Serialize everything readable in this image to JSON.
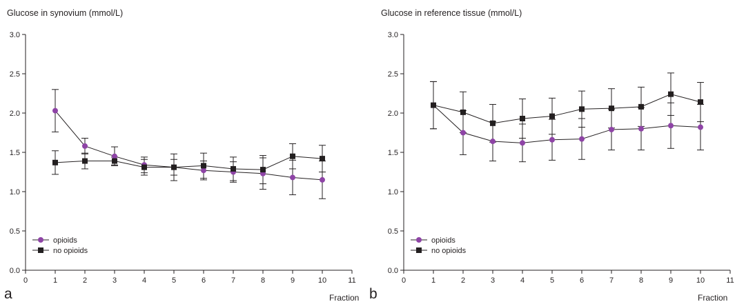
{
  "chart_data": [
    {
      "type": "line",
      "panel_label": "a",
      "title": "Glucose in synovium (mmol/L)",
      "xlabel": "Fraction",
      "ylabel": "",
      "xlim": [
        0,
        11
      ],
      "ylim": [
        0,
        3.0
      ],
      "x_ticks": [
        "0",
        "1",
        "2",
        "3",
        "4",
        "5",
        "6",
        "7",
        "8",
        "9",
        "10",
        "11"
      ],
      "y_ticks": [
        "0.0",
        "0.5",
        "1.0",
        "1.5",
        "2.0",
        "2.5",
        "3.0"
      ],
      "grid": false,
      "legend_position": "bottom-left",
      "x": [
        1,
        2,
        3,
        4,
        5,
        6,
        7,
        8,
        9,
        10
      ],
      "series": [
        {
          "name": "opioids",
          "marker": "circle",
          "color": "#8e44a6",
          "values": [
            2.03,
            1.58,
            1.45,
            1.34,
            1.31,
            1.27,
            1.25,
            1.23,
            1.18,
            1.15
          ],
          "error": [
            0.27,
            0.1,
            0.12,
            0.1,
            0.1,
            0.12,
            0.13,
            0.2,
            0.22,
            0.24
          ]
        },
        {
          "name": "no opioids",
          "marker": "square",
          "color": "#231f20",
          "values": [
            1.37,
            1.39,
            1.39,
            1.31,
            1.31,
            1.33,
            1.29,
            1.28,
            1.45,
            1.42
          ],
          "error": [
            0.15,
            0.1,
            0.05,
            0.1,
            0.17,
            0.16,
            0.15,
            0.18,
            0.16,
            0.17
          ]
        }
      ]
    },
    {
      "type": "line",
      "panel_label": "b",
      "title": "Glucose in reference tissue (mmol/L)",
      "xlabel": "Fraction",
      "ylabel": "",
      "xlim": [
        0,
        11
      ],
      "ylim": [
        0,
        3.0
      ],
      "x_ticks": [
        "0",
        "1",
        "2",
        "3",
        "4",
        "5",
        "6",
        "7",
        "8",
        "9",
        "10",
        "11"
      ],
      "y_ticks": [
        "0.0",
        "0.5",
        "1.0",
        "1.5",
        "2.0",
        "2.5",
        "3.0"
      ],
      "grid": false,
      "legend_position": "bottom-left",
      "x": [
        1,
        2,
        3,
        4,
        5,
        6,
        7,
        8,
        9,
        10
      ],
      "series": [
        {
          "name": "opioids",
          "marker": "circle",
          "color": "#8e44a6",
          "values": [
            2.1,
            1.75,
            1.64,
            1.62,
            1.66,
            1.67,
            1.79,
            1.8,
            1.84,
            1.82
          ],
          "error": [
            0.3,
            0.28,
            0.25,
            0.24,
            0.26,
            0.26,
            0.26,
            0.27,
            0.29,
            0.29
          ]
        },
        {
          "name": "no opioids",
          "marker": "square",
          "color": "#231f20",
          "values": [
            2.1,
            2.01,
            1.87,
            1.93,
            1.96,
            2.05,
            2.06,
            2.08,
            2.24,
            2.14
          ],
          "error": [
            0.3,
            0.26,
            0.24,
            0.25,
            0.23,
            0.23,
            0.25,
            0.25,
            0.27,
            0.25
          ]
        }
      ]
    }
  ]
}
